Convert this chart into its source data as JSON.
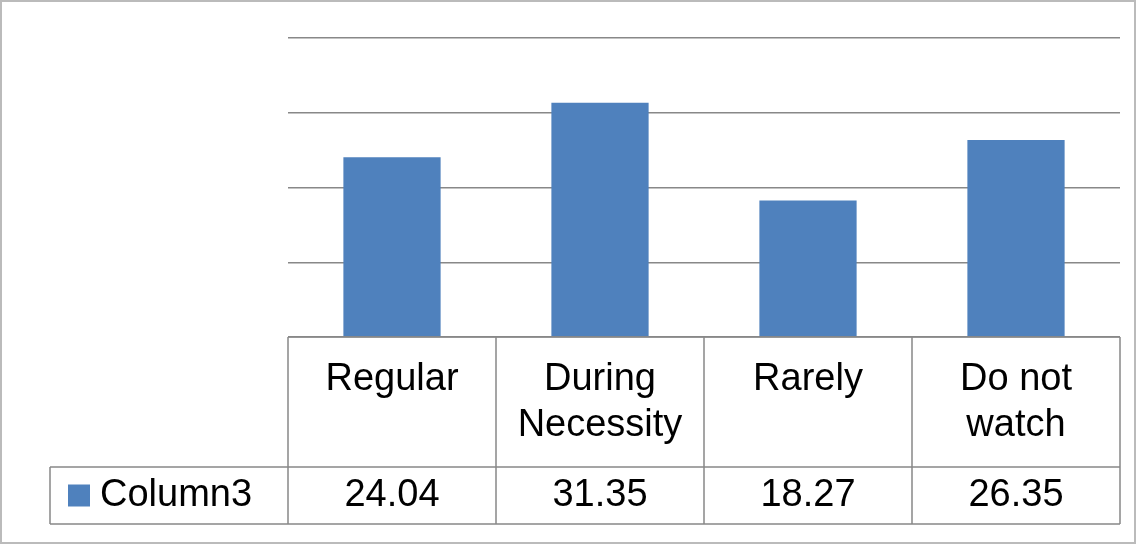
{
  "chart_data": {
    "type": "bar",
    "categories": [
      "Regular",
      "During Necessity",
      "Rarely",
      "Do not watch"
    ],
    "series": [
      {
        "name": "Column3",
        "color": "#4f81bd",
        "values": [
          24.04,
          31.35,
          18.27,
          26.35
        ]
      }
    ],
    "ylim": [
      0,
      40
    ],
    "yticks": [
      {
        "value": 0,
        "label": null
      },
      {
        "value": 10,
        "label": null
      },
      {
        "value": 20,
        "label": null
      },
      {
        "value": 30,
        "label": null
      },
      {
        "value": 40,
        "label": null
      }
    ],
    "grid": "y",
    "tick_labels": "x",
    "data_labels": true,
    "legend": "bottom left"
  }
}
